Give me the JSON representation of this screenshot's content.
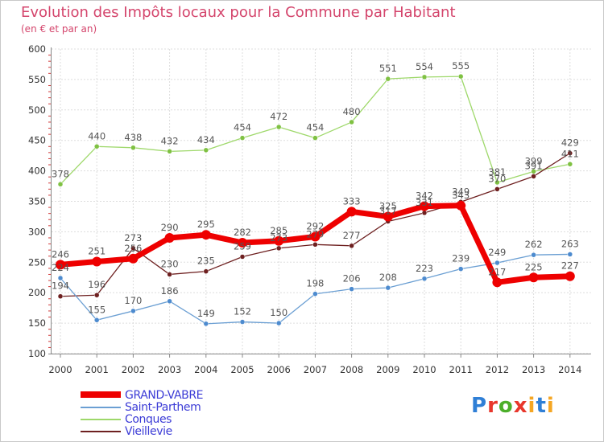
{
  "title": "Evolution des Impôts locaux pour la Commune par Habitant",
  "subtitle": "(en € et par an)",
  "brand": {
    "letters": [
      "P",
      "r",
      "o",
      "x",
      "i",
      "t",
      "i"
    ],
    "colors": [
      "#2f7fd6",
      "#e8372c",
      "#4caf2a",
      "#e8372c",
      "#f5a623",
      "#2f7fd6",
      "#f5a623"
    ]
  },
  "chart_data": {
    "type": "line",
    "x": [
      "2000",
      "2001",
      "2002",
      "2003",
      "2004",
      "2005",
      "2006",
      "2007",
      "2008",
      "2009",
      "2010",
      "2011",
      "2012",
      "2013",
      "2014"
    ],
    "ylim": [
      100,
      600
    ],
    "yticks": [
      "100",
      "150",
      "200",
      "250",
      "300",
      "350",
      "400",
      "450",
      "500",
      "550",
      "600"
    ],
    "grid": true,
    "series": [
      {
        "name": "Conques",
        "color": "#9ed86a",
        "marker": "#7fc142",
        "width": 1.3,
        "values": [
          378,
          440,
          438,
          432,
          434,
          454,
          472,
          454,
          480,
          551,
          554,
          555,
          381,
          399,
          411
        ]
      },
      {
        "name": "Vieillevie",
        "color": "#6e2020",
        "marker": "#6e2020",
        "width": 1.3,
        "values": [
          194,
          196,
          273,
          230,
          235,
          259,
          273,
          279,
          277,
          317,
          331,
          349,
          370,
          391,
          429
        ]
      },
      {
        "name": "Saint-Parthem",
        "color": "#6b9fd3",
        "marker": "#4d8bcf",
        "width": 1.3,
        "values": [
          224,
          155,
          170,
          186,
          149,
          152,
          150,
          198,
          206,
          208,
          223,
          239,
          249,
          262,
          263
        ]
      },
      {
        "name": "GRAND-VABRE",
        "color": "#ee0000",
        "marker": "#ee0000",
        "width": 7,
        "values": [
          246,
          251,
          256,
          290,
          295,
          282,
          285,
          292,
          333,
          325,
          342,
          343,
          217,
          225,
          227
        ]
      }
    ],
    "legend": [
      "GRAND-VABRE",
      "Saint-Parthem",
      "Conques",
      "Vieillevie"
    ]
  }
}
